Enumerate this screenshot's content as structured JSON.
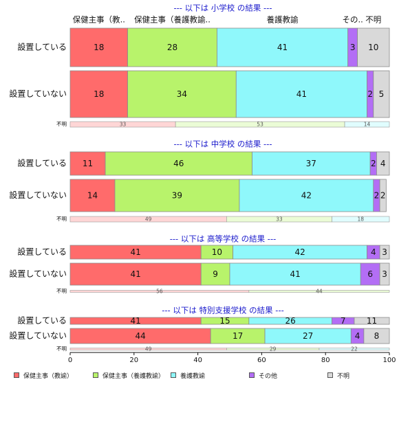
{
  "chart_data": {
    "type": "bar",
    "orientation": "horizontal",
    "stacked": true,
    "percent": true,
    "xlim": [
      0,
      100
    ],
    "x_ticks": [
      "0",
      "20",
      "40",
      "60",
      "80",
      "100"
    ],
    "grid": false,
    "legend_position": "bottom",
    "category_headers": [
      "保健主事（教..",
      "保健主事（養護教諭..",
      "養護教諭",
      "その..",
      "不明"
    ],
    "categories": [
      "保健主事（教諭）",
      "保健主事（養護教諭）",
      "養護教諭",
      "その他",
      "不明"
    ],
    "colors": [
      "#ff6b6b",
      "#b8f36b",
      "#8ff8fb",
      "#b36ef5",
      "#d9d9d9"
    ],
    "groups": [
      {
        "title": "--- 以下は 小学校 の結果 ---",
        "rows": [
          {
            "label": "設置している",
            "values": [
              18,
              28,
              41,
              3,
              10
            ]
          },
          {
            "label": "設置していない",
            "values": [
              18,
              34,
              41,
              2,
              5
            ]
          }
        ],
        "unknown": {
          "label": "不明",
          "values": [
            33,
            53,
            14
          ]
        }
      },
      {
        "title": "--- 以下は 中学校 の結果 ---",
        "rows": [
          {
            "label": "設置している",
            "values": [
              11,
              46,
              37,
              2,
              4
            ]
          },
          {
            "label": "設置していない",
            "values": [
              14,
              39,
              42,
              2,
              2
            ]
          }
        ],
        "unknown": {
          "label": "不明",
          "values": [
            49,
            33,
            18
          ]
        }
      },
      {
        "title": "--- 以下は 高等学校 の結果 ---",
        "rows": [
          {
            "label": "設置している",
            "values": [
              41,
              10,
              42,
              4,
              3
            ]
          },
          {
            "label": "設置していない",
            "values": [
              41,
              9,
              41,
              6,
              3
            ]
          }
        ],
        "unknown": {
          "label": "不明",
          "values": [
            56,
            44
          ]
        }
      },
      {
        "title": "--- 以下は 特別支援学校 の結果 ---",
        "rows": [
          {
            "label": "設置している",
            "values": [
              41,
              15,
              26,
              7,
              11
            ]
          },
          {
            "label": "設置していない",
            "values": [
              44,
              17,
              27,
              4,
              8
            ]
          }
        ],
        "unknown": {
          "label": "不明",
          "values": [
            49,
            29,
            22
          ]
        }
      }
    ]
  },
  "legend": [
    {
      "label": "保健主事（教諭）",
      "color": "#ff6b6b"
    },
    {
      "label": "保健主事（養護教諭）",
      "color": "#b8f36b"
    },
    {
      "label": "養護教諭",
      "color": "#8ff8fb"
    },
    {
      "label": "その他",
      "color": "#b36ef5"
    },
    {
      "label": "不明",
      "color": "#d9d9d9"
    }
  ]
}
